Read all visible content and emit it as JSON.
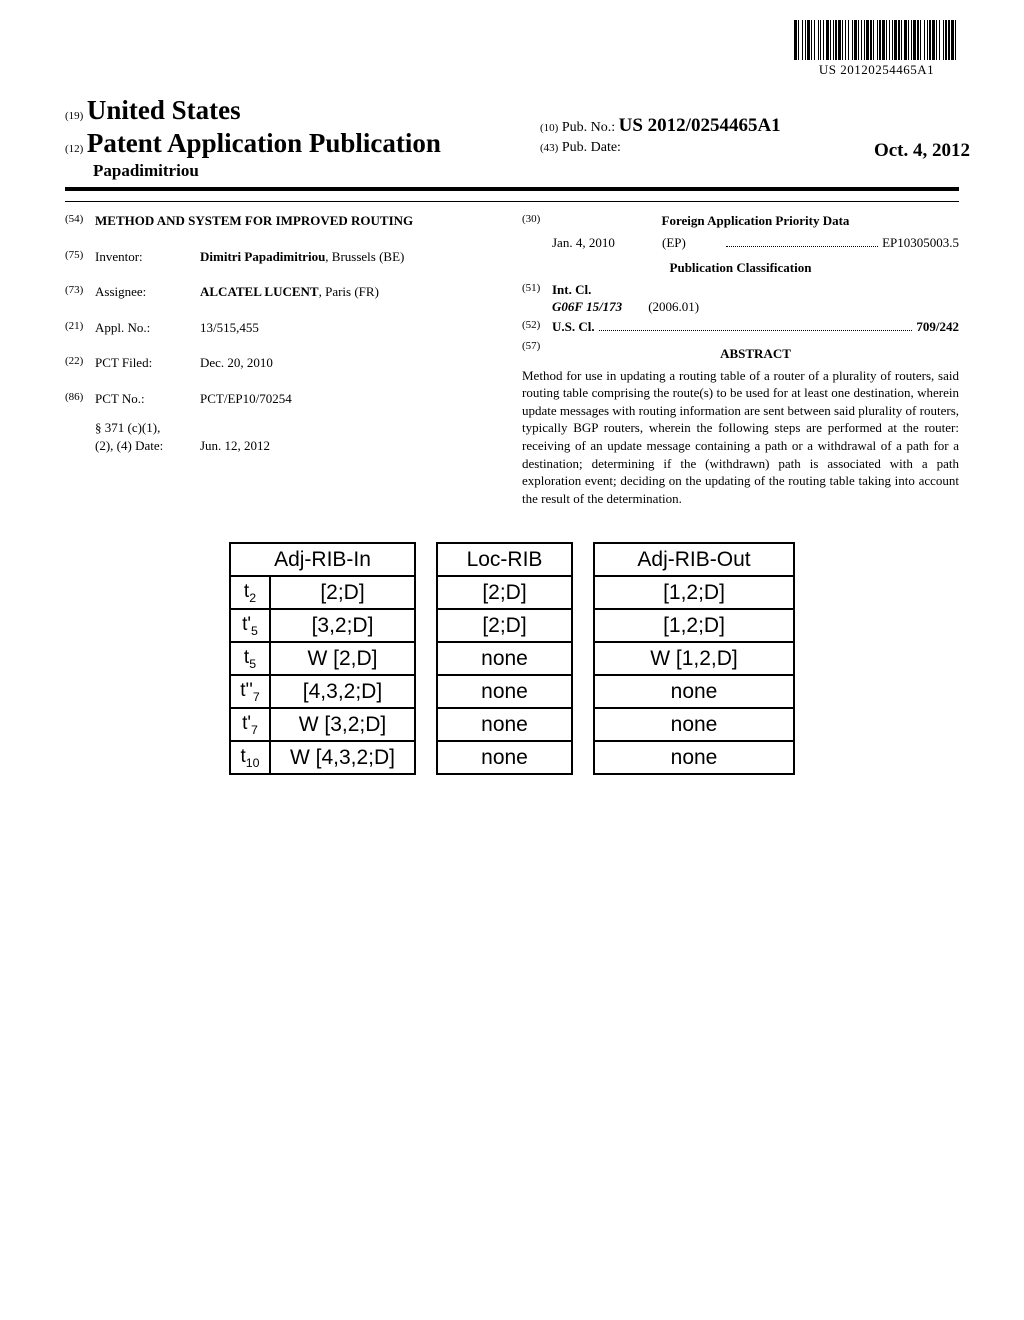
{
  "barcode_text": "US 20120254465A1",
  "header": {
    "country_prefix": "(19)",
    "country": "United States",
    "pub_prefix": "(12)",
    "pub_type": "Patent Application Publication",
    "author_line": "Papadimitriou",
    "pubno_prefix": "(10)",
    "pubno_label": "Pub. No.:",
    "pubno": "US 2012/0254465A1",
    "pubdate_prefix": "(43)",
    "pubdate_label": "Pub. Date:",
    "pubdate": "Oct. 4, 2012"
  },
  "left_col": {
    "title_num": "(54)",
    "title": "METHOD AND SYSTEM FOR IMPROVED ROUTING",
    "inventor_num": "(75)",
    "inventor_label": "Inventor:",
    "inventor": "Dimitri Papadimitriou",
    "inventor_loc": ", Brussels (BE)",
    "assignee_num": "(73)",
    "assignee_label": "Assignee:",
    "assignee": "ALCATEL LUCENT",
    "assignee_loc": ", Paris (FR)",
    "appl_num": "(21)",
    "appl_label": "Appl. No.:",
    "appl": "13/515,455",
    "pct_filed_num": "(22)",
    "pct_filed_label": "PCT Filed:",
    "pct_filed": "Dec. 20, 2010",
    "pct_no_num": "(86)",
    "pct_no_label": "PCT No.:",
    "pct_no": "PCT/EP10/70254",
    "s371_label": "§ 371 (c)(1),",
    "s371_label2": "(2), (4) Date:",
    "s371_date": "Jun. 12, 2012"
  },
  "right_col": {
    "foreign_num": "(30)",
    "foreign_hdr": "Foreign Application Priority Data",
    "priority_date": "Jan. 4, 2010",
    "priority_cc": "(EP)",
    "priority_no": "EP10305003.5",
    "pub_class_hdr": "Publication Classification",
    "intcl_num": "(51)",
    "intcl_label": "Int. Cl.",
    "intcl_code": "G06F 15/173",
    "intcl_year": "(2006.01)",
    "uscl_num": "(52)",
    "uscl_label": "U.S. Cl.",
    "uscl_val": "709/242",
    "abstract_num": "(57)",
    "abstract_hdr": "ABSTRACT",
    "abstract": "Method for use in updating a routing table of a router of a plurality of routers, said routing table comprising the route(s) to be used for at least one destination, wherein update messages with routing information are sent between said plurality of routers, typically BGP routers, wherein the following steps are performed at the router: receiving of an update message containing a path or a withdrawal of a path for a destination; determining if the (withdrawn) path is associated with a path exploration event; deciding on the updating of the routing table taking into account the result of the determination."
  },
  "figure": {
    "adj_in": {
      "header": "Adj-RIB-In",
      "rows": [
        {
          "t": "t<sub>2</sub>",
          "v": "[2;D]"
        },
        {
          "t": "t'<sub>5</sub>",
          "v": "[3,2;D]"
        },
        {
          "t": "t<sub>5</sub>",
          "v": "W [2,D]"
        },
        {
          "t": "t''<sub>7</sub>",
          "v": "[4,3,2;D]"
        },
        {
          "t": "t'<sub>7</sub>",
          "v": "W [3,2;D]"
        },
        {
          "t": "t<sub>10</sub>",
          "v": "W [4,3,2;D]"
        }
      ]
    },
    "loc": {
      "header": "Loc-RIB",
      "rows": [
        "[2;D]",
        "[2;D]",
        "none",
        "none",
        "none",
        "none"
      ]
    },
    "adj_out": {
      "header": "Adj-RIB-Out",
      "rows": [
        "[1,2;D]",
        "[1,2;D]",
        "W [1,2,D]",
        "none",
        "none",
        "none"
      ]
    }
  }
}
